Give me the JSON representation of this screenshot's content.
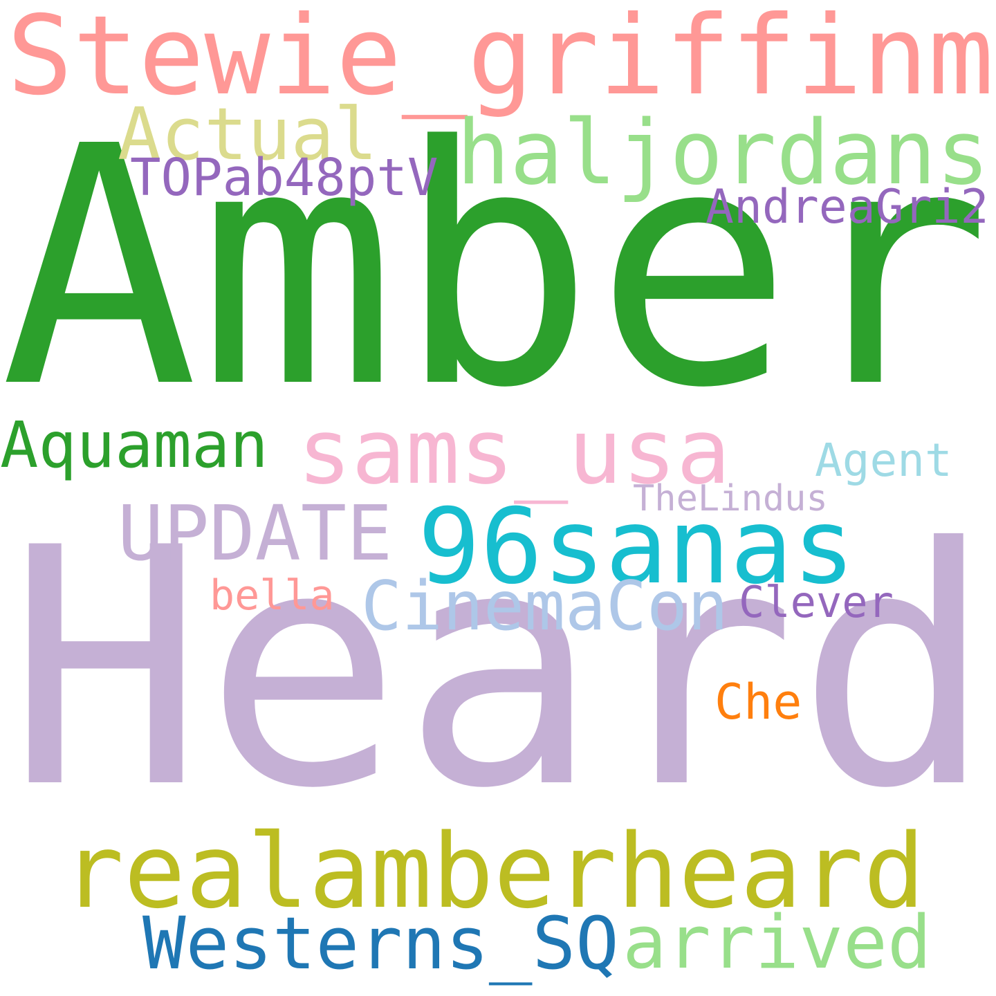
{
  "cloud": {
    "words": {
      "stewie": {
        "text": "Stewie_griffinm",
        "color": "#ff9896"
      },
      "actual": {
        "text": "Actual",
        "color": "#dbdb8d"
      },
      "haljor": {
        "text": "haljordans",
        "color": "#98df8a"
      },
      "topab": {
        "text": "TOPab48ptV",
        "color": "#9467bd"
      },
      "andrea": {
        "text": "AndreaGri2",
        "color": "#9467bd"
      },
      "amber": {
        "text": "Amber",
        "color": "#2ca02c"
      },
      "aquaman": {
        "text": "Aquaman",
        "color": "#2ca02c"
      },
      "sams": {
        "text": "sams_usa",
        "color": "#f7b6d2"
      },
      "agent": {
        "text": "Agent",
        "color": "#9edae5"
      },
      "thelin": {
        "text": "TheLindus",
        "color": "#c5b0d5"
      },
      "update": {
        "text": "UPDATE",
        "color": "#c5b0d5"
      },
      "n96": {
        "text": "96sanas",
        "color": "#17becf"
      },
      "bella": {
        "text": "bella",
        "color": "#ff9896"
      },
      "cinema": {
        "text": "CinemaCon",
        "color": "#aec7e8"
      },
      "clever": {
        "text": "Clever",
        "color": "#9467bd"
      },
      "heard": {
        "text": "Heard",
        "color": "#c5b0d5"
      },
      "che": {
        "text": "Che",
        "color": "#ff7f0e"
      },
      "realam": {
        "text": "realamberheard",
        "color": "#bcbd22"
      },
      "western": {
        "text": "Westerns_SQ",
        "color": "#1f77b4"
      },
      "arrived": {
        "text": "arrived",
        "color": "#98df8a"
      }
    }
  }
}
